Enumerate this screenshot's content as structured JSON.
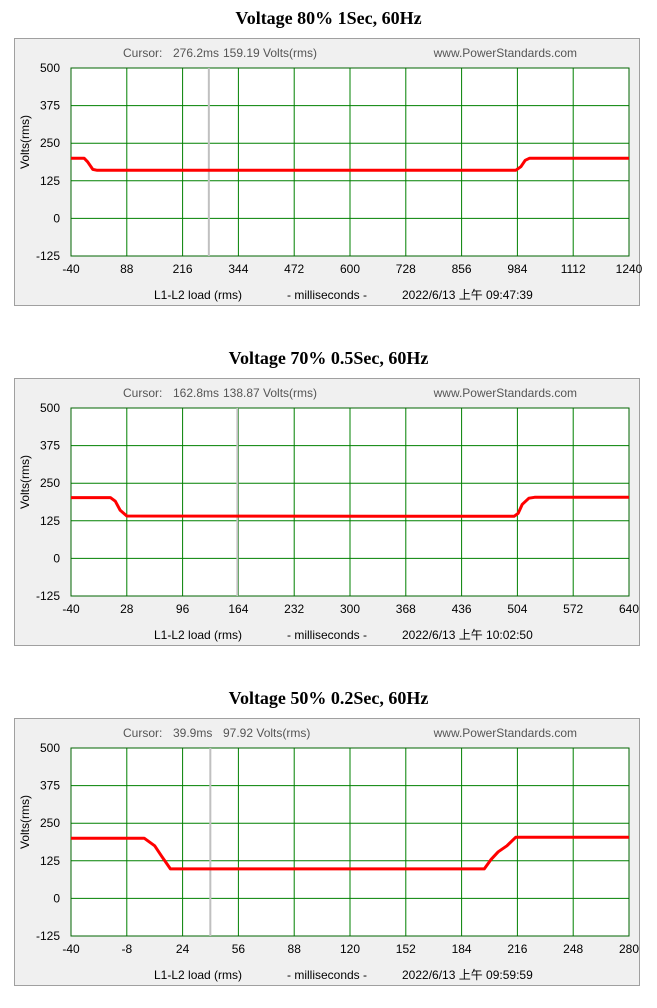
{
  "chart_data": [
    {
      "type": "line",
      "title": "Voltage 80% 1Sec, 60Hz",
      "cursor_label": "Cursor:",
      "cursor_time": "276.2ms",
      "cursor_value": "159.19 Volts(rms)",
      "cursor_x": 276.2,
      "website": "www.PowerStandards.com",
      "ylabel": "Volts(rms)",
      "ylim": [
        -125,
        500
      ],
      "xlim": [
        -40,
        1240
      ],
      "xticks": [
        -40,
        88,
        216,
        344,
        472,
        600,
        728,
        856,
        984,
        1112,
        1240
      ],
      "yticks": [
        500,
        375,
        250,
        125,
        0,
        -125
      ],
      "xlabel_left": "L1-L2 load (rms)",
      "xlabel_mid": "- milliseconds -",
      "timestamp": "2022/6/13 上午 09:47:39",
      "grid": true,
      "series": [
        {
          "color": "#ff0000",
          "x": [
            -40,
            -10,
            -2,
            10,
            20,
            300,
            980,
            992,
            1002,
            1012,
            1240
          ],
          "y": [
            200,
            200,
            188,
            163,
            160,
            160,
            160,
            172,
            193,
            200,
            200
          ]
        }
      ]
    },
    {
      "type": "line",
      "title": "Voltage 70% 0.5Sec, 60Hz",
      "cursor_label": "Cursor:",
      "cursor_time": "162.8ms",
      "cursor_value": "138.87 Volts(rms)",
      "cursor_x": 162.8,
      "website": "www.PowerStandards.com",
      "ylabel": "Volts(rms)",
      "ylim": [
        -125,
        500
      ],
      "xlim": [
        -40,
        640
      ],
      "xticks": [
        -40,
        28,
        96,
        164,
        232,
        300,
        368,
        436,
        504,
        572,
        640
      ],
      "yticks": [
        500,
        375,
        250,
        125,
        0,
        -125
      ],
      "xlabel_left": "L1-L2 load (rms)",
      "xlabel_mid": "- milliseconds -",
      "timestamp": "2022/6/13 上午 10:02:50",
      "grid": true,
      "series": [
        {
          "color": "#ff0000",
          "x": [
            -40,
            8,
            14,
            20,
            28,
            500,
            505,
            510,
            518,
            525,
            640
          ],
          "y": [
            202,
            202,
            190,
            160,
            141,
            140,
            150,
            180,
            200,
            203,
            203
          ]
        }
      ]
    },
    {
      "type": "line",
      "title": "Voltage 50% 0.2Sec, 60Hz",
      "cursor_label": "Cursor:",
      "cursor_time": "39.9ms",
      "cursor_value": "97.92 Volts(rms)",
      "cursor_x": 39.9,
      "website": "www.PowerStandards.com",
      "ylabel": "Volts(rms)",
      "ylim": [
        -125,
        500
      ],
      "xlim": [
        -40,
        280
      ],
      "xticks": [
        -40,
        -8,
        24,
        56,
        88,
        120,
        152,
        184,
        216,
        248,
        280
      ],
      "yticks": [
        500,
        375,
        250,
        125,
        0,
        -125
      ],
      "xlabel_left": "L1-L2 load (rms)",
      "xlabel_mid": "- milliseconds -",
      "timestamp": "2022/6/13 上午 09:59:59",
      "grid": true,
      "series": [
        {
          "color": "#ff0000",
          "x": [
            -40,
            2,
            8,
            12,
            17,
            197,
            201,
            205,
            210,
            215,
            280
          ],
          "y": [
            200,
            200,
            175,
            140,
            98,
            98,
            130,
            155,
            175,
            203,
            203
          ]
        }
      ]
    }
  ]
}
